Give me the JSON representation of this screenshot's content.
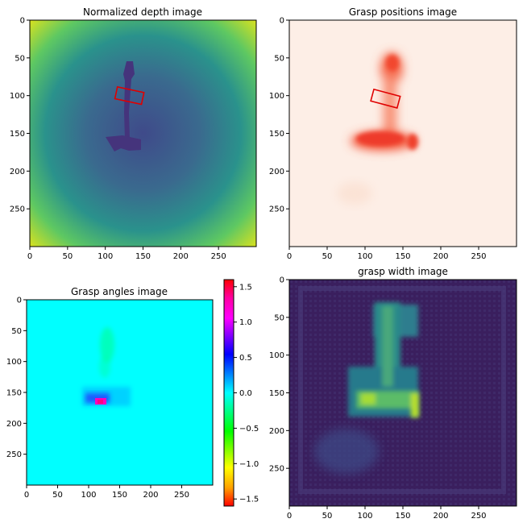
{
  "chart_data": [
    {
      "type": "heatmap",
      "title": "Normalized depth image",
      "xlim": [
        0,
        300
      ],
      "ylim": [
        300,
        0
      ],
      "xticks": [
        0,
        50,
        100,
        150,
        200,
        250
      ],
      "yticks": [
        0,
        50,
        100,
        150,
        200,
        250
      ],
      "colormap": "viridis",
      "object": "hammer",
      "grasp_box": {
        "center": [
          132,
          100
        ],
        "length": 36,
        "width": 16,
        "angle_deg": 12,
        "color": "#e00000"
      }
    },
    {
      "type": "heatmap",
      "title": "Grasp positions image",
      "xlim": [
        0,
        300
      ],
      "ylim": [
        300,
        0
      ],
      "xticks": [
        0,
        50,
        100,
        150,
        200,
        250
      ],
      "yticks": [
        0,
        50,
        100,
        150,
        200,
        250
      ],
      "colormap": "reds",
      "grasp_box": {
        "center": [
          127,
          104
        ],
        "length": 36,
        "width": 16,
        "angle_deg": 15,
        "color": "#e00000"
      }
    },
    {
      "type": "heatmap",
      "title": "Grasp angles image",
      "xlim": [
        0,
        300
      ],
      "ylim": [
        300,
        0
      ],
      "xticks": [
        0,
        50,
        100,
        150,
        200,
        250
      ],
      "yticks": [
        0,
        50,
        100,
        150,
        200,
        250
      ],
      "colormap": "hsv",
      "colorbar": {
        "min": -1.6,
        "max": 1.6,
        "ticks": [
          "1.5",
          "1.0",
          "0.5",
          "0.0",
          "−0.5",
          "−1.0",
          "−1.5"
        ],
        "tick_values": [
          1.5,
          1.0,
          0.5,
          0.0,
          -0.5,
          -1.0,
          -1.5
        ]
      }
    },
    {
      "type": "heatmap",
      "title": "grasp width image",
      "xlim": [
        0,
        300
      ],
      "ylim": [
        300,
        0
      ],
      "xticks": [
        0,
        50,
        100,
        150,
        200,
        250
      ],
      "yticks": [
        0,
        50,
        100,
        150,
        200,
        250
      ],
      "colormap": "viridis"
    }
  ],
  "colors": {
    "depth_center": "#3f4b8a",
    "depth_edge": "#d8e219",
    "hammer_depth": "#44337a",
    "positions_bg": "#fdeee6",
    "positions_hot": "#f2362a",
    "angles_bg": "#00ffff",
    "width_bg": "#3a1f5e",
    "width_hot": "#6ecb5a"
  }
}
